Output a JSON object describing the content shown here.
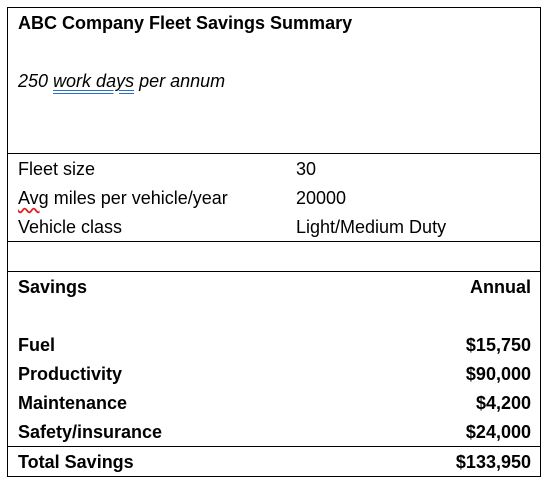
{
  "document": {
    "title": "ABC Company Fleet Savings Summary",
    "subtitle": {
      "prefix": "250 ",
      "underlined": "work days",
      "suffix": " per annum"
    },
    "fleet_info": [
      {
        "label": "Fleet size",
        "value": "30"
      },
      {
        "label_flagged": "Avg",
        "label_rest": " miles per vehicle/year",
        "value": "20000"
      },
      {
        "label": "Vehicle class",
        "value": "Light/Medium Duty"
      }
    ],
    "savings_table": {
      "header_label": "Savings",
      "header_period": "Annual",
      "rows": [
        {
          "label": "Fuel",
          "amount": "$15,750"
        },
        {
          "label": "Productivity",
          "amount": "$90,000"
        },
        {
          "label": "Maintenance",
          "amount": "$4,200"
        },
        {
          "label": "Safety/insurance",
          "amount": "$24,000"
        }
      ],
      "total_label": "Total Savings",
      "total_amount": "$133,950"
    }
  },
  "colors": {
    "grammar_underline": "#2b6cc4",
    "spelling_underline": "#e02020"
  }
}
